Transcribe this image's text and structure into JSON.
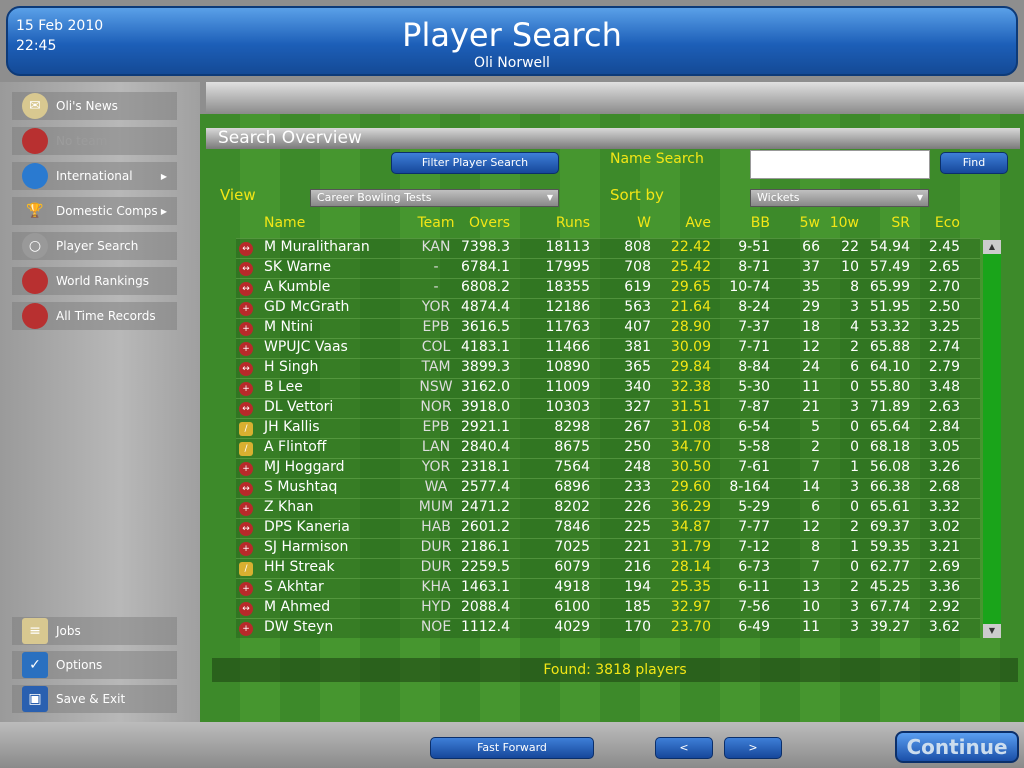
{
  "header": {
    "date": "15 Feb 2010",
    "time": "22:45",
    "title": "Player Search",
    "subtitle": "Oli Norwell"
  },
  "sidebar": {
    "items": [
      {
        "label": "Oli's News",
        "icon": "envelope-icon",
        "disabled": false
      },
      {
        "label": "No team",
        "icon": "cricket-ball-icon",
        "disabled": true
      },
      {
        "label": "International",
        "icon": "globe-icon",
        "submenu": true
      },
      {
        "label": "Domestic Comps",
        "icon": "trophy-icon",
        "submenu": true
      },
      {
        "label": "Player Search",
        "icon": "magnifier-icon"
      },
      {
        "label": "World Rankings",
        "icon": "cricket-ball-icon"
      },
      {
        "label": "All Time Records",
        "icon": "cricket-ball-icon"
      }
    ],
    "bottom_items": [
      {
        "label": "Jobs",
        "icon": "notepad-icon"
      },
      {
        "label": "Options",
        "icon": "checkmark-icon"
      },
      {
        "label": "Save & Exit",
        "icon": "floppy-disk-icon"
      }
    ]
  },
  "panel": {
    "title": "Search Overview",
    "filter_button": "Filter Player Search",
    "name_search_label": "Name Search",
    "name_search_value": "",
    "find_button": "Find",
    "view_label": "View",
    "view_value": "Career Bowling Tests",
    "sort_label": "Sort by",
    "sort_value": "Wickets"
  },
  "table": {
    "columns": [
      "Name",
      "Team",
      "Overs",
      "Runs",
      "W",
      "Ave",
      "BB",
      "5w",
      "10w",
      "SR",
      "Eco"
    ],
    "rows": [
      {
        "type": "spin",
        "name": "M Muralitharan",
        "team": "KAN",
        "overs": "7398.3",
        "runs": "18113",
        "w": "808",
        "ave": "22.42",
        "bb": "9-51",
        "f5": "66",
        "t10": "22",
        "sr": "54.94",
        "eco": "2.45"
      },
      {
        "type": "spin",
        "name": "SK Warne",
        "team": "-",
        "overs": "6784.1",
        "runs": "17995",
        "w": "708",
        "ave": "25.42",
        "bb": "8-71",
        "f5": "37",
        "t10": "10",
        "sr": "57.49",
        "eco": "2.65"
      },
      {
        "type": "spin",
        "name": "A Kumble",
        "team": "-",
        "overs": "6808.2",
        "runs": "18355",
        "w": "619",
        "ave": "29.65",
        "bb": "10-74",
        "f5": "35",
        "t10": "8",
        "sr": "65.99",
        "eco": "2.70"
      },
      {
        "type": "pace",
        "name": "GD McGrath",
        "team": "YOR",
        "overs": "4874.4",
        "runs": "12186",
        "w": "563",
        "ave": "21.64",
        "bb": "8-24",
        "f5": "29",
        "t10": "3",
        "sr": "51.95",
        "eco": "2.50"
      },
      {
        "type": "pace",
        "name": "M Ntini",
        "team": "EPB",
        "overs": "3616.5",
        "runs": "11763",
        "w": "407",
        "ave": "28.90",
        "bb": "7-37",
        "f5": "18",
        "t10": "4",
        "sr": "53.32",
        "eco": "3.25"
      },
      {
        "type": "pace",
        "name": "WPUJC Vaas",
        "team": "COL",
        "overs": "4183.1",
        "runs": "11466",
        "w": "381",
        "ave": "30.09",
        "bb": "7-71",
        "f5": "12",
        "t10": "2",
        "sr": "65.88",
        "eco": "2.74"
      },
      {
        "type": "spin",
        "name": "H Singh",
        "team": "TAM",
        "overs": "3899.3",
        "runs": "10890",
        "w": "365",
        "ave": "29.84",
        "bb": "8-84",
        "f5": "24",
        "t10": "6",
        "sr": "64.10",
        "eco": "2.79"
      },
      {
        "type": "pace",
        "name": "B Lee",
        "team": "NSW",
        "overs": "3162.0",
        "runs": "11009",
        "w": "340",
        "ave": "32.38",
        "bb": "5-30",
        "f5": "11",
        "t10": "0",
        "sr": "55.80",
        "eco": "3.48"
      },
      {
        "type": "spin",
        "name": "DL Vettori",
        "team": "NOR",
        "overs": "3918.0",
        "runs": "10303",
        "w": "327",
        "ave": "31.51",
        "bb": "7-87",
        "f5": "21",
        "t10": "3",
        "sr": "71.89",
        "eco": "2.63"
      },
      {
        "type": "allrounder",
        "name": "JH Kallis",
        "team": "EPB",
        "overs": "2921.1",
        "runs": "8298",
        "w": "267",
        "ave": "31.08",
        "bb": "6-54",
        "f5": "5",
        "t10": "0",
        "sr": "65.64",
        "eco": "2.84"
      },
      {
        "type": "allrounder",
        "name": "A Flintoff",
        "team": "LAN",
        "overs": "2840.4",
        "runs": "8675",
        "w": "250",
        "ave": "34.70",
        "bb": "5-58",
        "f5": "2",
        "t10": "0",
        "sr": "68.18",
        "eco": "3.05"
      },
      {
        "type": "pace",
        "name": "MJ Hoggard",
        "team": "YOR",
        "overs": "2318.1",
        "runs": "7564",
        "w": "248",
        "ave": "30.50",
        "bb": "7-61",
        "f5": "7",
        "t10": "1",
        "sr": "56.08",
        "eco": "3.26"
      },
      {
        "type": "spin",
        "name": "S Mushtaq",
        "team": "WA",
        "overs": "2577.4",
        "runs": "6896",
        "w": "233",
        "ave": "29.60",
        "bb": "8-164",
        "f5": "14",
        "t10": "3",
        "sr": "66.38",
        "eco": "2.68"
      },
      {
        "type": "pace",
        "name": "Z Khan",
        "team": "MUM",
        "overs": "2471.2",
        "runs": "8202",
        "w": "226",
        "ave": "36.29",
        "bb": "5-29",
        "f5": "6",
        "t10": "0",
        "sr": "65.61",
        "eco": "3.32"
      },
      {
        "type": "spin",
        "name": "DPS Kaneria",
        "team": "HAB",
        "overs": "2601.2",
        "runs": "7846",
        "w": "225",
        "ave": "34.87",
        "bb": "7-77",
        "f5": "12",
        "t10": "2",
        "sr": "69.37",
        "eco": "3.02"
      },
      {
        "type": "pace",
        "name": "SJ Harmison",
        "team": "DUR",
        "overs": "2186.1",
        "runs": "7025",
        "w": "221",
        "ave": "31.79",
        "bb": "7-12",
        "f5": "8",
        "t10": "1",
        "sr": "59.35",
        "eco": "3.21"
      },
      {
        "type": "allrounder",
        "name": "HH Streak",
        "team": "DUR",
        "overs": "2259.5",
        "runs": "6079",
        "w": "216",
        "ave": "28.14",
        "bb": "6-73",
        "f5": "7",
        "t10": "0",
        "sr": "62.77",
        "eco": "2.69"
      },
      {
        "type": "pace",
        "name": "S Akhtar",
        "team": "KHA",
        "overs": "1463.1",
        "runs": "4918",
        "w": "194",
        "ave": "25.35",
        "bb": "6-11",
        "f5": "13",
        "t10": "2",
        "sr": "45.25",
        "eco": "3.36"
      },
      {
        "type": "spin",
        "name": "M Ahmed",
        "team": "HYD",
        "overs": "2088.4",
        "runs": "6100",
        "w": "185",
        "ave": "32.97",
        "bb": "7-56",
        "f5": "10",
        "t10": "3",
        "sr": "67.74",
        "eco": "2.92"
      },
      {
        "type": "pace",
        "name": "DW Steyn",
        "team": "NOE",
        "overs": "1112.4",
        "runs": "4029",
        "w": "170",
        "ave": "23.70",
        "bb": "6-49",
        "f5": "11",
        "t10": "3",
        "sr": "39.27",
        "eco": "3.62"
      }
    ]
  },
  "found": "Found: 3818 players",
  "footer": {
    "fast_forward": "Fast Forward",
    "prev": "<",
    "next": ">",
    "continue": "Continue"
  }
}
